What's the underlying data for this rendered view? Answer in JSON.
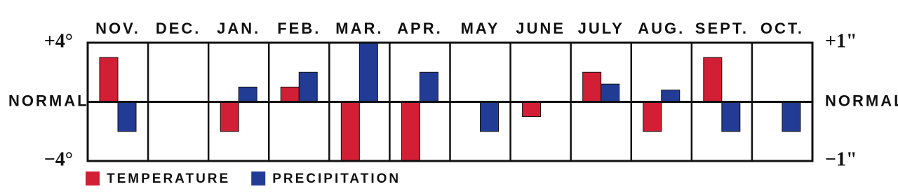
{
  "chart_data": {
    "type": "bar",
    "categories": [
      "NOV.",
      "DEC.",
      "JAN.",
      "FEB.",
      "MAR.",
      "APR.",
      "MAY",
      "JUNE",
      "JULY",
      "AUG.",
      "SEPT.",
      "OCT."
    ],
    "series": [
      {
        "name": "TEMPERATURE",
        "color": "#d21f35",
        "values": [
          3,
          0,
          -2,
          1,
          -4,
          -4,
          0,
          -1,
          2,
          -2,
          3,
          0
        ]
      },
      {
        "name": "PRECIPITATION",
        "color": "#223c96",
        "axis": "y2",
        "values": [
          -0.5,
          0,
          0.25,
          0.5,
          1,
          0.5,
          -0.5,
          0,
          0.3,
          0.2,
          -0.5,
          -0.5
        ]
      }
    ],
    "ylim": [
      -4,
      4
    ],
    "yticks": [
      {
        "value": 4,
        "label": "+4°"
      },
      {
        "value": 0,
        "label": "NORMAL"
      },
      {
        "value": -4,
        "label": "−4°"
      }
    ],
    "y2lim": [
      -1,
      1
    ],
    "y2ticks": [
      {
        "value": 1,
        "label": "+1\""
      },
      {
        "value": 0,
        "label": "NORMAL"
      },
      {
        "value": -1,
        "label": "−1\""
      }
    ]
  }
}
